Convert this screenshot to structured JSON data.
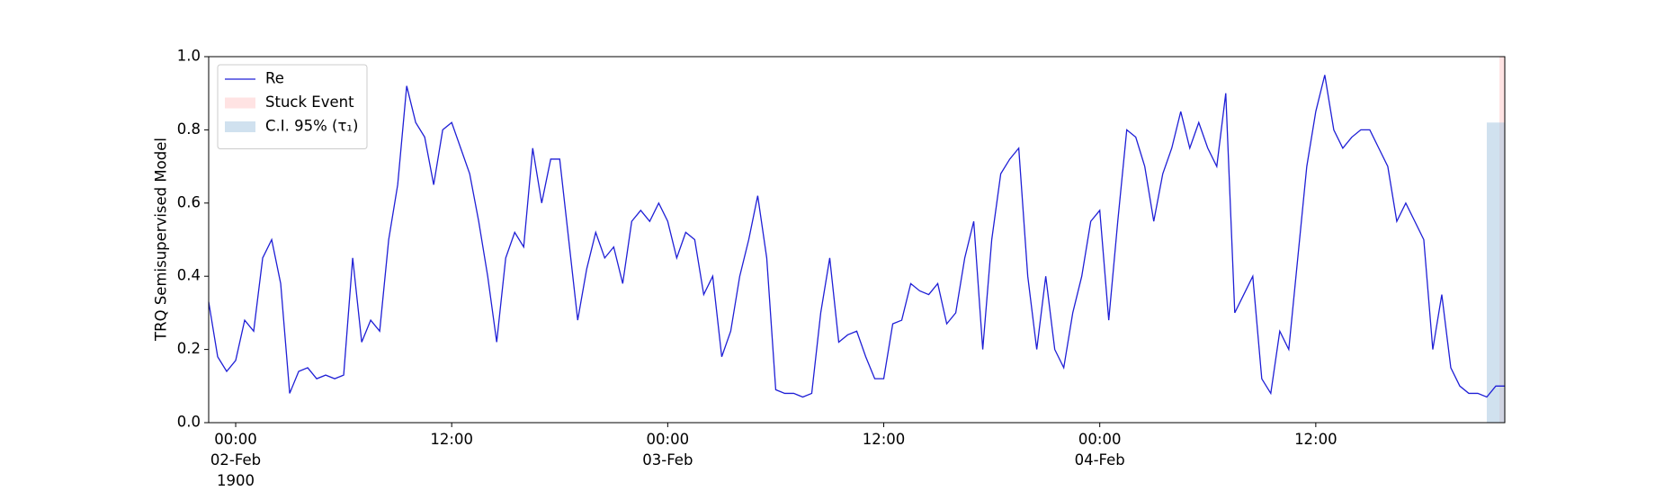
{
  "chart_data": {
    "type": "line",
    "ylabel": "TRQ Semisupervised Model",
    "xlim": [
      "1900-02-01T22:30",
      "1900-02-04T22:30"
    ],
    "xticks": [
      {
        "value": "1900-02-02T00:00",
        "label": "00:00\n02-Feb\n1900"
      },
      {
        "value": "1900-02-02T12:00",
        "label": "12:00"
      },
      {
        "value": "1900-02-03T00:00",
        "label": "00:00\n03-Feb"
      },
      {
        "value": "1900-02-03T12:00",
        "label": "12:00"
      },
      {
        "value": "1900-02-04T00:00",
        "label": "00:00\n04-Feb"
      },
      {
        "value": "1900-02-04T12:00",
        "label": "12:00"
      }
    ],
    "ylim": [
      0,
      1
    ],
    "yticks": [
      {
        "value": 0,
        "label": "0.0"
      },
      0.2,
      0.4,
      0.6,
      0.8,
      {
        "value": 1,
        "label": "1.0"
      }
    ],
    "legend": "upper left",
    "x": [
      "1900-02-01T22:30",
      "1900-02-01T23:00",
      "1900-02-01T23:30",
      "1900-02-02T00:00",
      "1900-02-02T00:30",
      "1900-02-02T01:00",
      "1900-02-02T01:30",
      "1900-02-02T02:00",
      "1900-02-02T02:30",
      "1900-02-02T03:00",
      "1900-02-02T03:30",
      "1900-02-02T04:00",
      "1900-02-02T04:30",
      "1900-02-02T05:00",
      "1900-02-02T05:30",
      "1900-02-02T06:00",
      "1900-02-02T06:30",
      "1900-02-02T07:00",
      "1900-02-02T07:30",
      "1900-02-02T08:00",
      "1900-02-02T08:30",
      "1900-02-02T09:00",
      "1900-02-02T09:30",
      "1900-02-02T10:00",
      "1900-02-02T10:30",
      "1900-02-02T11:00",
      "1900-02-02T11:30",
      "1900-02-02T12:00",
      "1900-02-02T12:30",
      "1900-02-02T13:00",
      "1900-02-02T13:30",
      "1900-02-02T14:00",
      "1900-02-02T14:30",
      "1900-02-02T15:00",
      "1900-02-02T15:30",
      "1900-02-02T16:00",
      "1900-02-02T16:30",
      "1900-02-02T17:00",
      "1900-02-02T17:30",
      "1900-02-02T18:00",
      "1900-02-02T18:30",
      "1900-02-02T19:00",
      "1900-02-02T19:30",
      "1900-02-02T20:00",
      "1900-02-02T20:30",
      "1900-02-02T21:00",
      "1900-02-02T21:30",
      "1900-02-02T22:00",
      "1900-02-02T22:30",
      "1900-02-02T23:00",
      "1900-02-02T23:30",
      "1900-02-03T00:00",
      "1900-02-03T00:30",
      "1900-02-03T01:00",
      "1900-02-03T01:30",
      "1900-02-03T02:00",
      "1900-02-03T02:30",
      "1900-02-03T03:00",
      "1900-02-03T03:30",
      "1900-02-03T04:00",
      "1900-02-03T04:30",
      "1900-02-03T05:00",
      "1900-02-03T05:30",
      "1900-02-03T06:00",
      "1900-02-03T06:30",
      "1900-02-03T07:00",
      "1900-02-03T07:30",
      "1900-02-03T08:00",
      "1900-02-03T08:30",
      "1900-02-03T09:00",
      "1900-02-03T09:30",
      "1900-02-03T10:00",
      "1900-02-03T10:30",
      "1900-02-03T11:00",
      "1900-02-03T11:30",
      "1900-02-03T12:00",
      "1900-02-03T12:30",
      "1900-02-03T13:00",
      "1900-02-03T13:30",
      "1900-02-03T14:00",
      "1900-02-03T14:30",
      "1900-02-03T15:00",
      "1900-02-03T15:30",
      "1900-02-03T16:00",
      "1900-02-03T16:30",
      "1900-02-03T17:00",
      "1900-02-03T17:30",
      "1900-02-03T18:00",
      "1900-02-03T18:30",
      "1900-02-03T19:00",
      "1900-02-03T19:30",
      "1900-02-03T20:00",
      "1900-02-03T20:30",
      "1900-02-03T21:00",
      "1900-02-03T21:30",
      "1900-02-03T22:00",
      "1900-02-03T22:30",
      "1900-02-03T23:00",
      "1900-02-03T23:30",
      "1900-02-04T00:00",
      "1900-02-04T00:30",
      "1900-02-04T01:00",
      "1900-02-04T01:30",
      "1900-02-04T02:00",
      "1900-02-04T02:30",
      "1900-02-04T03:00",
      "1900-02-04T03:30",
      "1900-02-04T04:00",
      "1900-02-04T04:30",
      "1900-02-04T05:00",
      "1900-02-04T05:30",
      "1900-02-04T06:00",
      "1900-02-04T06:30",
      "1900-02-04T07:00",
      "1900-02-04T07:30",
      "1900-02-04T08:00",
      "1900-02-04T08:30",
      "1900-02-04T09:00",
      "1900-02-04T09:30",
      "1900-02-04T10:00",
      "1900-02-04T10:30",
      "1900-02-04T11:00",
      "1900-02-04T11:30",
      "1900-02-04T12:00",
      "1900-02-04T12:30",
      "1900-02-04T13:00",
      "1900-02-04T13:30",
      "1900-02-04T14:00",
      "1900-02-04T14:30",
      "1900-02-04T15:00",
      "1900-02-04T15:30",
      "1900-02-04T16:00",
      "1900-02-04T16:30",
      "1900-02-04T17:00",
      "1900-02-04T17:30",
      "1900-02-04T18:00",
      "1900-02-04T18:30",
      "1900-02-04T19:00",
      "1900-02-04T19:30",
      "1900-02-04T20:00",
      "1900-02-04T20:30",
      "1900-02-04T21:00",
      "1900-02-04T21:30",
      "1900-02-04T22:00",
      "1900-02-04T22:30"
    ],
    "series": [
      {
        "name": "Re",
        "color": "#1f1fd6",
        "values": [
          0.33,
          0.18,
          0.14,
          0.17,
          0.28,
          0.25,
          0.45,
          0.5,
          0.38,
          0.08,
          0.14,
          0.15,
          0.12,
          0.13,
          0.12,
          0.13,
          0.45,
          0.22,
          0.28,
          0.25,
          0.5,
          0.65,
          0.92,
          0.82,
          0.78,
          0.65,
          0.8,
          0.82,
          0.75,
          0.68,
          0.55,
          0.4,
          0.22,
          0.45,
          0.52,
          0.48,
          0.75,
          0.6,
          0.72,
          0.72,
          0.5,
          0.28,
          0.42,
          0.52,
          0.45,
          0.48,
          0.38,
          0.55,
          0.58,
          0.55,
          0.6,
          0.55,
          0.45,
          0.52,
          0.5,
          0.35,
          0.4,
          0.18,
          0.25,
          0.4,
          0.5,
          0.62,
          0.45,
          0.09,
          0.08,
          0.08,
          0.07,
          0.08,
          0.3,
          0.45,
          0.22,
          0.24,
          0.25,
          0.18,
          0.12,
          0.12,
          0.27,
          0.28,
          0.38,
          0.36,
          0.35,
          0.38,
          0.27,
          0.3,
          0.45,
          0.55,
          0.2,
          0.5,
          0.68,
          0.72,
          0.75,
          0.4,
          0.2,
          0.4,
          0.2,
          0.15,
          0.3,
          0.4,
          0.55,
          0.58,
          0.28,
          0.55,
          0.8,
          0.78,
          0.7,
          0.55,
          0.68,
          0.75,
          0.85,
          0.75,
          0.82,
          0.75,
          0.7,
          0.9,
          0.3,
          0.35,
          0.4,
          0.12,
          0.08,
          0.25,
          0.2,
          0.45,
          0.7,
          0.85,
          0.95,
          0.8,
          0.75,
          0.78,
          0.8,
          0.8,
          0.75,
          0.7,
          0.55,
          0.6,
          0.55,
          0.5,
          0.2,
          0.35,
          0.15,
          0.1,
          0.08,
          0.08,
          0.07,
          0.1,
          0.1
        ]
      }
    ],
    "shaded_regions": [
      {
        "name": "Stuck Event",
        "color": "#ffcccc",
        "x": [
          "1900-02-04T22:12",
          "1900-02-04T22:30"
        ]
      },
      {
        "name": "C.I. 95% (τ₁)",
        "color": "#aac9e2",
        "x": [
          "1900-02-04T21:30",
          "1900-02-04T22:30"
        ],
        "y": [
          0,
          0.82
        ]
      }
    ]
  }
}
